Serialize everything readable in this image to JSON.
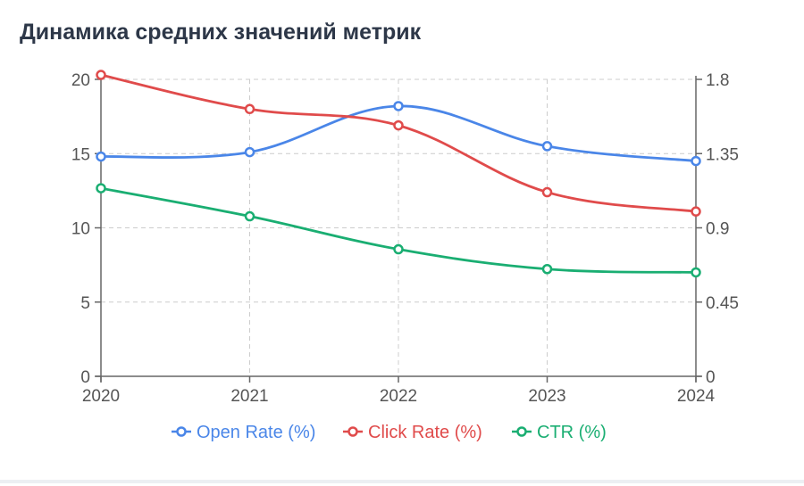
{
  "title": "Динамика средних значений метрик",
  "colors": {
    "open_rate": "#4a86e8",
    "click_rate": "#e04b4b",
    "ctr": "#1aae72",
    "grid": "#cccccc",
    "axis": "#666666"
  },
  "chart_data": {
    "type": "line",
    "title": "Динамика средних значений метрик",
    "x": [
      "2020",
      "2021",
      "2022",
      "2023",
      "2024"
    ],
    "y_left": {
      "ticks": [
        "0",
        "5",
        "10",
        "15",
        "20"
      ],
      "ylim": [
        0,
        20
      ]
    },
    "y_right": {
      "ticks": [
        "0",
        "0.45",
        "0.9",
        "1.35",
        "1.8"
      ],
      "ylim": [
        0,
        1.8
      ]
    },
    "grid": true,
    "legend_position": "bottom",
    "series": [
      {
        "name": "Open Rate (%)",
        "axis": "left",
        "color": "#4a86e8",
        "values": [
          14.8,
          15.1,
          18.2,
          15.5,
          14.5
        ]
      },
      {
        "name": "Click Rate (%)",
        "axis": "left",
        "color": "#e04b4b",
        "values": [
          20.3,
          18.0,
          16.9,
          12.4,
          11.1
        ]
      },
      {
        "name": "CTR (%)",
        "axis": "right",
        "color": "#1aae72",
        "values": [
          1.14,
          0.97,
          0.77,
          0.65,
          0.63
        ]
      }
    ]
  }
}
